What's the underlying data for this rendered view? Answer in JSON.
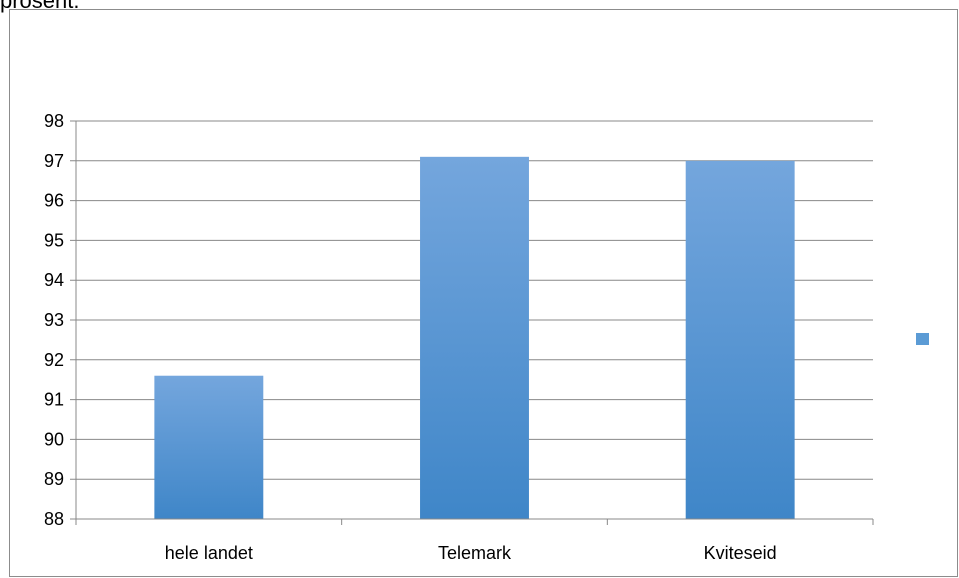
{
  "page": {
    "top_text": "prosent."
  },
  "chart_data": {
    "type": "bar",
    "title": "",
    "xlabel": "",
    "ylabel": "",
    "categories": [
      "hele landet",
      "Telemark",
      "Kviteseid"
    ],
    "values": [
      91.6,
      97.1,
      97.0
    ],
    "ylim": [
      88,
      98
    ],
    "yticks": [
      "88",
      "89",
      "90",
      "91",
      "92",
      "93",
      "94",
      "95",
      "96",
      "97",
      "98"
    ],
    "grid": true,
    "legend_placement": "right",
    "colors": {
      "bar_top": "#74a6dd",
      "bar_bottom": "#3f86c8",
      "axis": "#888888",
      "grid": "#888888",
      "legend_marker": "#5b9bd5"
    }
  }
}
